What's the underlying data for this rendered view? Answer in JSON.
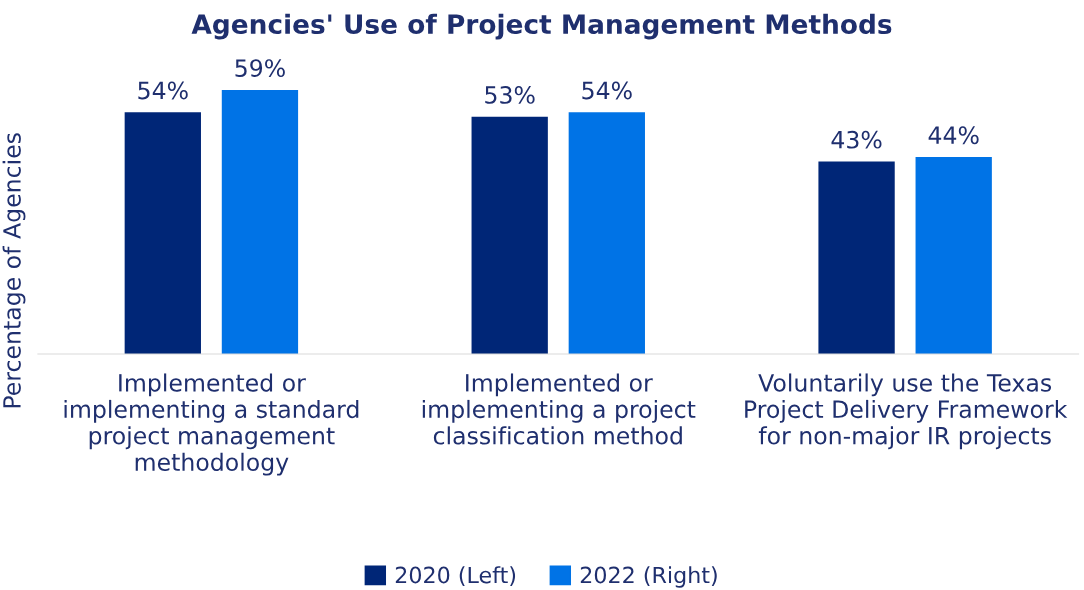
{
  "chart_data": {
    "type": "bar",
    "title": "Agencies' Use of Project Management Methods",
    "ylabel": "Percentage of Agencies",
    "categories": [
      "Implemented or implementing a standard project management methodology",
      "Implemented or implementing a project classification method",
      "Voluntarily use the Texas Project Delivery Framework for non-major IR projects"
    ],
    "series": [
      {
        "name": "2020 (Left)",
        "color": "#002677",
        "values": [
          54,
          53,
          43
        ],
        "value_labels": [
          "54%",
          "53%",
          "43%"
        ]
      },
      {
        "name": "2022 (Right)",
        "color": "#0073e6",
        "values": [
          59,
          54,
          44
        ],
        "value_labels": [
          "59%",
          "54%",
          "44%"
        ]
      }
    ],
    "tick_labels": "x",
    "grid": false,
    "legend": "bottom"
  }
}
